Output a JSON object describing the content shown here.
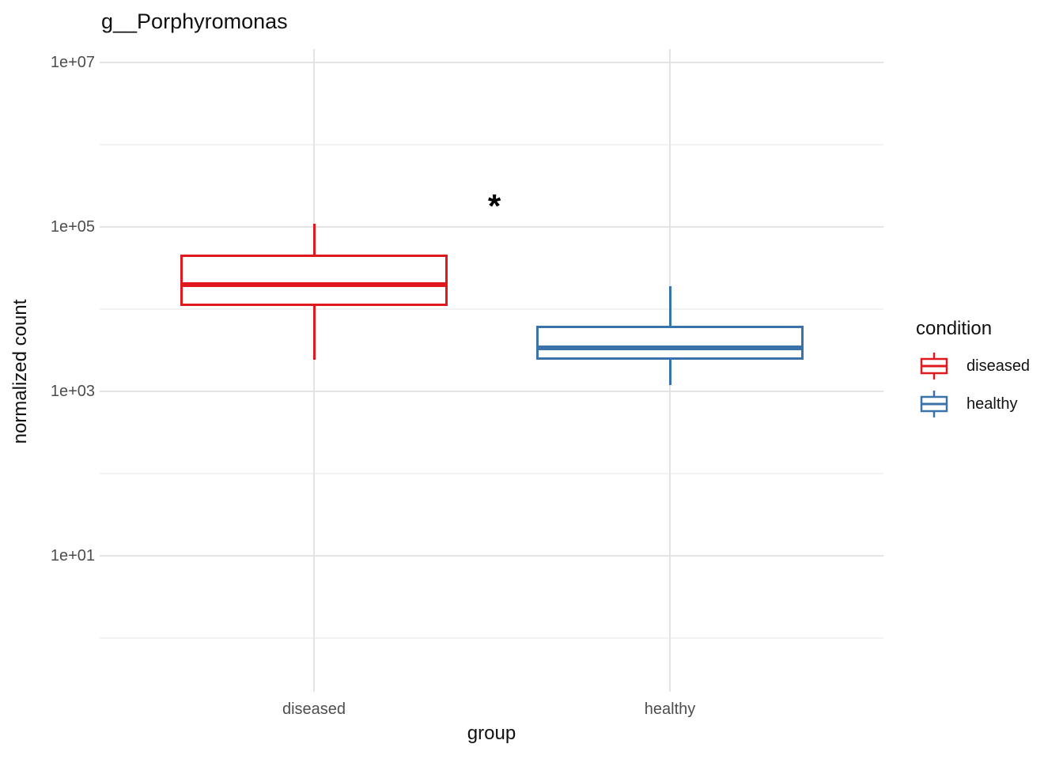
{
  "chart_data": {
    "type": "boxplot",
    "title": "g__Porphyromonas",
    "xlabel": "group",
    "ylabel": "normalized count",
    "y_scale": "log10",
    "categories": [
      "diseased",
      "healthy"
    ],
    "y_ticks": [
      {
        "label": "1e+07",
        "value": 10000000
      },
      {
        "label": "1e+05",
        "value": 100000
      },
      {
        "label": "1e+03",
        "value": 1000
      },
      {
        "label": "1e+01",
        "value": 10
      }
    ],
    "y_minor": [
      1000000,
      10000,
      100,
      1
    ],
    "series": [
      {
        "name": "diseased",
        "color": "#e0191f",
        "stats": {
          "whisker_low": 2400,
          "q1": 11000,
          "median": 20000,
          "q3": 46000,
          "whisker_high": 110000
        }
      },
      {
        "name": "healthy",
        "color": "#3a73a9",
        "stats": {
          "whisker_low": 1200,
          "q1": 2450,
          "median": 3400,
          "q3": 6300,
          "whisker_high": 19000
        }
      }
    ],
    "annotation": {
      "text": "*",
      "between": [
        "diseased",
        "healthy"
      ]
    }
  },
  "legend": {
    "title": "condition",
    "entries": [
      {
        "label": "diseased",
        "color": "#e0191f"
      },
      {
        "label": "healthy",
        "color": "#3a73a9"
      }
    ]
  }
}
